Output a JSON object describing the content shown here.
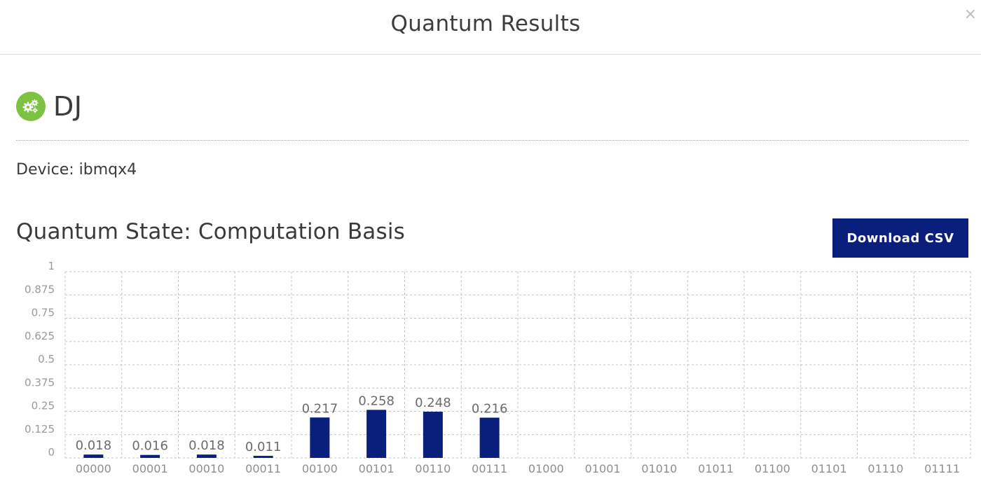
{
  "modal": {
    "title": "Quantum Results",
    "close_icon": "close-icon",
    "close_glyph": "×"
  },
  "experiment": {
    "icon": "gears-icon",
    "icon_color": "#7dc243",
    "name": "DJ"
  },
  "device": {
    "text": "Device: ibmqx4"
  },
  "section": {
    "title": "Quantum State: Computation Basis"
  },
  "toolbar": {
    "download_label": "Download CSV",
    "download_color": "#0a1f7c"
  },
  "chart_data": {
    "type": "bar",
    "categories": [
      "00000",
      "00001",
      "00010",
      "00011",
      "00100",
      "00101",
      "00110",
      "00111",
      "01000",
      "01001",
      "01010",
      "01011",
      "01100",
      "01101",
      "01110",
      "01111"
    ],
    "values": [
      0.018,
      0.016,
      0.018,
      0.011,
      0.217,
      0.258,
      0.248,
      0.216,
      null,
      null,
      null,
      null,
      null,
      null,
      null,
      null
    ],
    "value_labels": [
      "0.018",
      "0.016",
      "0.018",
      "0.011",
      "0.217",
      "0.258",
      "0.248",
      "0.216",
      "",
      "",
      "",
      "",
      "",
      "",
      "",
      ""
    ],
    "y_ticks": [
      "0",
      "0.125",
      "0.25",
      "0.375",
      "0.5",
      "0.625",
      "0.75",
      "0.875",
      "1"
    ],
    "ylim": [
      0,
      1
    ],
    "grid": true,
    "bar_color": "#0a1f7c"
  }
}
